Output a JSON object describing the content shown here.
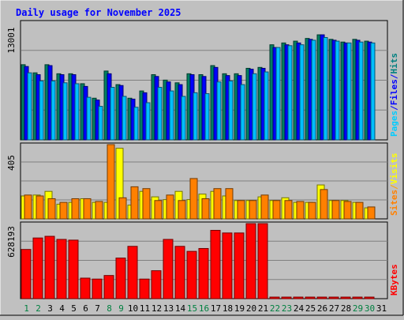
{
  "chart_data": {
    "type": "bar",
    "title": "Daily usage for November 2025",
    "x": [
      "1",
      "2",
      "3",
      "4",
      "5",
      "6",
      "7",
      "8",
      "9",
      "10",
      "11",
      "12",
      "13",
      "14",
      "15",
      "16",
      "17",
      "18",
      "19",
      "20",
      "21",
      "22",
      "23",
      "24",
      "25",
      "26",
      "27",
      "28",
      "29",
      "30",
      "31"
    ],
    "weekend_days": [
      "1",
      "2",
      "8",
      "9",
      "15",
      "16",
      "22",
      "23",
      "29",
      "30"
    ],
    "panels": [
      {
        "name": "hits-files-pages",
        "ymax": 13001,
        "ymax_label": "13001",
        "legend": [
          {
            "label": "Pages",
            "color": "#00ccff"
          },
          {
            "label": "/",
            "color": "#0000ff"
          },
          {
            "label": "Files",
            "color": "#0000ff"
          },
          {
            "label": "/",
            "color": "#0000ff"
          },
          {
            "label": "Hits",
            "color": "#008080"
          }
        ],
        "series": [
          {
            "name": "Hits",
            "color": "#008060",
            "values": [
              8300,
              7400,
              8300,
              7300,
              7300,
              6200,
              4600,
              7600,
              6100,
              4600,
              5400,
              7200,
              6600,
              6300,
              7300,
              7200,
              8200,
              7300,
              7300,
              7900,
              8000,
              10500,
              10700,
              10900,
              11200,
              11600,
              11100,
              10800,
              11100,
              10900,
              null
            ]
          },
          {
            "name": "Files",
            "color": "#0000ff",
            "values": [
              8100,
              7200,
              8200,
              7200,
              7200,
              5900,
              4400,
              7300,
              6000,
              4500,
              5200,
              7000,
              6400,
              6100,
              7200,
              7000,
              8000,
              7100,
              7100,
              7800,
              7900,
              10200,
              10500,
              10700,
              11100,
              11600,
              11000,
              10700,
              11000,
              10800,
              null
            ]
          },
          {
            "name": "Pages",
            "color": "#00bfff",
            "values": [
              7400,
              6500,
              6500,
              6300,
              6200,
              4700,
              3700,
              5800,
              4800,
              3600,
              4100,
              5800,
              5400,
              4800,
              5200,
              5100,
              6400,
              6500,
              6100,
              7300,
              7500,
              10200,
              10400,
              10500,
              11000,
              11300,
              10900,
              10700,
              10800,
              10700,
              null
            ]
          }
        ]
      },
      {
        "name": "visits-sites",
        "ymax": 405,
        "ymax_label": "405",
        "legend": [
          {
            "label": "Sites",
            "color": "#ff8000"
          },
          {
            "label": "/",
            "color": "#ffa000"
          },
          {
            "label": "Visits",
            "color": "#ffff00"
          }
        ],
        "series": [
          {
            "name": "Visits",
            "color": "#ffff00",
            "values": [
              125,
              130,
              150,
              80,
              90,
              110,
              90,
              90,
              385,
              75,
              150,
              120,
              105,
              150,
              105,
              135,
              150,
              125,
              100,
              100,
              120,
              100,
              115,
              90,
              90,
              185,
              100,
              100,
              90,
              60,
              null
            ]
          },
          {
            "name": "Sites",
            "color": "#ff8000",
            "values": [
              130,
              125,
              110,
              90,
              110,
              110,
              95,
              405,
              115,
              175,
              165,
              100,
              130,
              100,
              220,
              110,
              165,
              165,
              100,
              100,
              130,
              100,
              100,
              95,
              90,
              160,
              100,
              95,
              90,
              65,
              null
            ]
          }
        ]
      },
      {
        "name": "kbytes",
        "ymax": 628193,
        "ymax_label": "628193",
        "legend": [
          {
            "label": "KBytes",
            "color": "#ff0000"
          }
        ],
        "series": [
          {
            "name": "KBytes",
            "color": "#ff0000",
            "values": [
              412000,
              508000,
              522000,
              496000,
              490000,
              172000,
              164000,
              194000,
              340000,
              438000,
              164000,
              234000,
              496000,
              438000,
              396000,
              420000,
              572000,
              550000,
              550000,
              628193,
              628193,
              12000,
              9000,
              9000,
              9000,
              9000,
              9000,
              9000,
              9000,
              9000,
              null
            ]
          }
        ]
      }
    ],
    "grid": true,
    "legend_position": "right"
  }
}
